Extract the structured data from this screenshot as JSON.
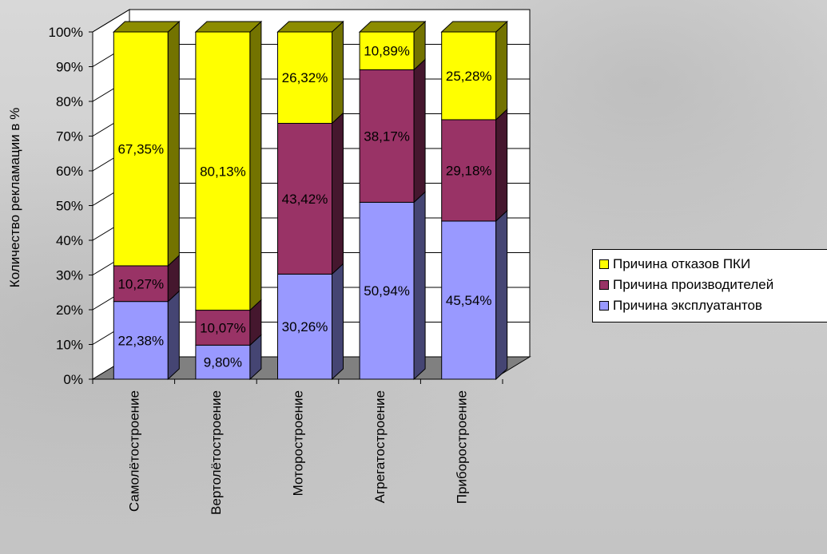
{
  "chart_data": {
    "type": "bar",
    "stacked": "100%",
    "ylabel": "Количество рекламации в %",
    "xlabel": "",
    "ylim": [
      0,
      100
    ],
    "y_ticks": [
      "0%",
      "10%",
      "20%",
      "30%",
      "40%",
      "50%",
      "60%",
      "70%",
      "80%",
      "90%",
      "100%"
    ],
    "categories": [
      "Самолётостроение",
      "Вертолётостроение",
      "Моторостроение",
      "Агрегатостроение",
      "Приборостроение"
    ],
    "series": [
      {
        "name": "Причина эксплуатантов",
        "color": "#9999ff",
        "values": [
          22.38,
          9.8,
          30.26,
          50.94,
          45.54
        ],
        "labels": [
          "22,38%",
          "9,80%",
          "30,26%",
          "50,94%",
          "45,54%"
        ]
      },
      {
        "name": "Причина производителей",
        "color": "#993366",
        "values": [
          10.27,
          10.07,
          43.42,
          38.17,
          29.18
        ],
        "labels": [
          "10,27%",
          "10,07%",
          "43,42%",
          "38,17%",
          "29,18%"
        ]
      },
      {
        "name": "Причина отказов ПКИ",
        "color": "#ffff00",
        "values": [
          67.35,
          80.13,
          26.32,
          10.89,
          25.28
        ],
        "labels": [
          "67,35%",
          "80,13%",
          "26,32%",
          "10,89%",
          "25,28%"
        ]
      }
    ],
    "legend": {
      "position": "right",
      "order": [
        "Причина отказов ПКИ",
        "Причина производителей",
        "Причина эксплуатантов"
      ]
    },
    "grid": true,
    "three_d": true
  }
}
